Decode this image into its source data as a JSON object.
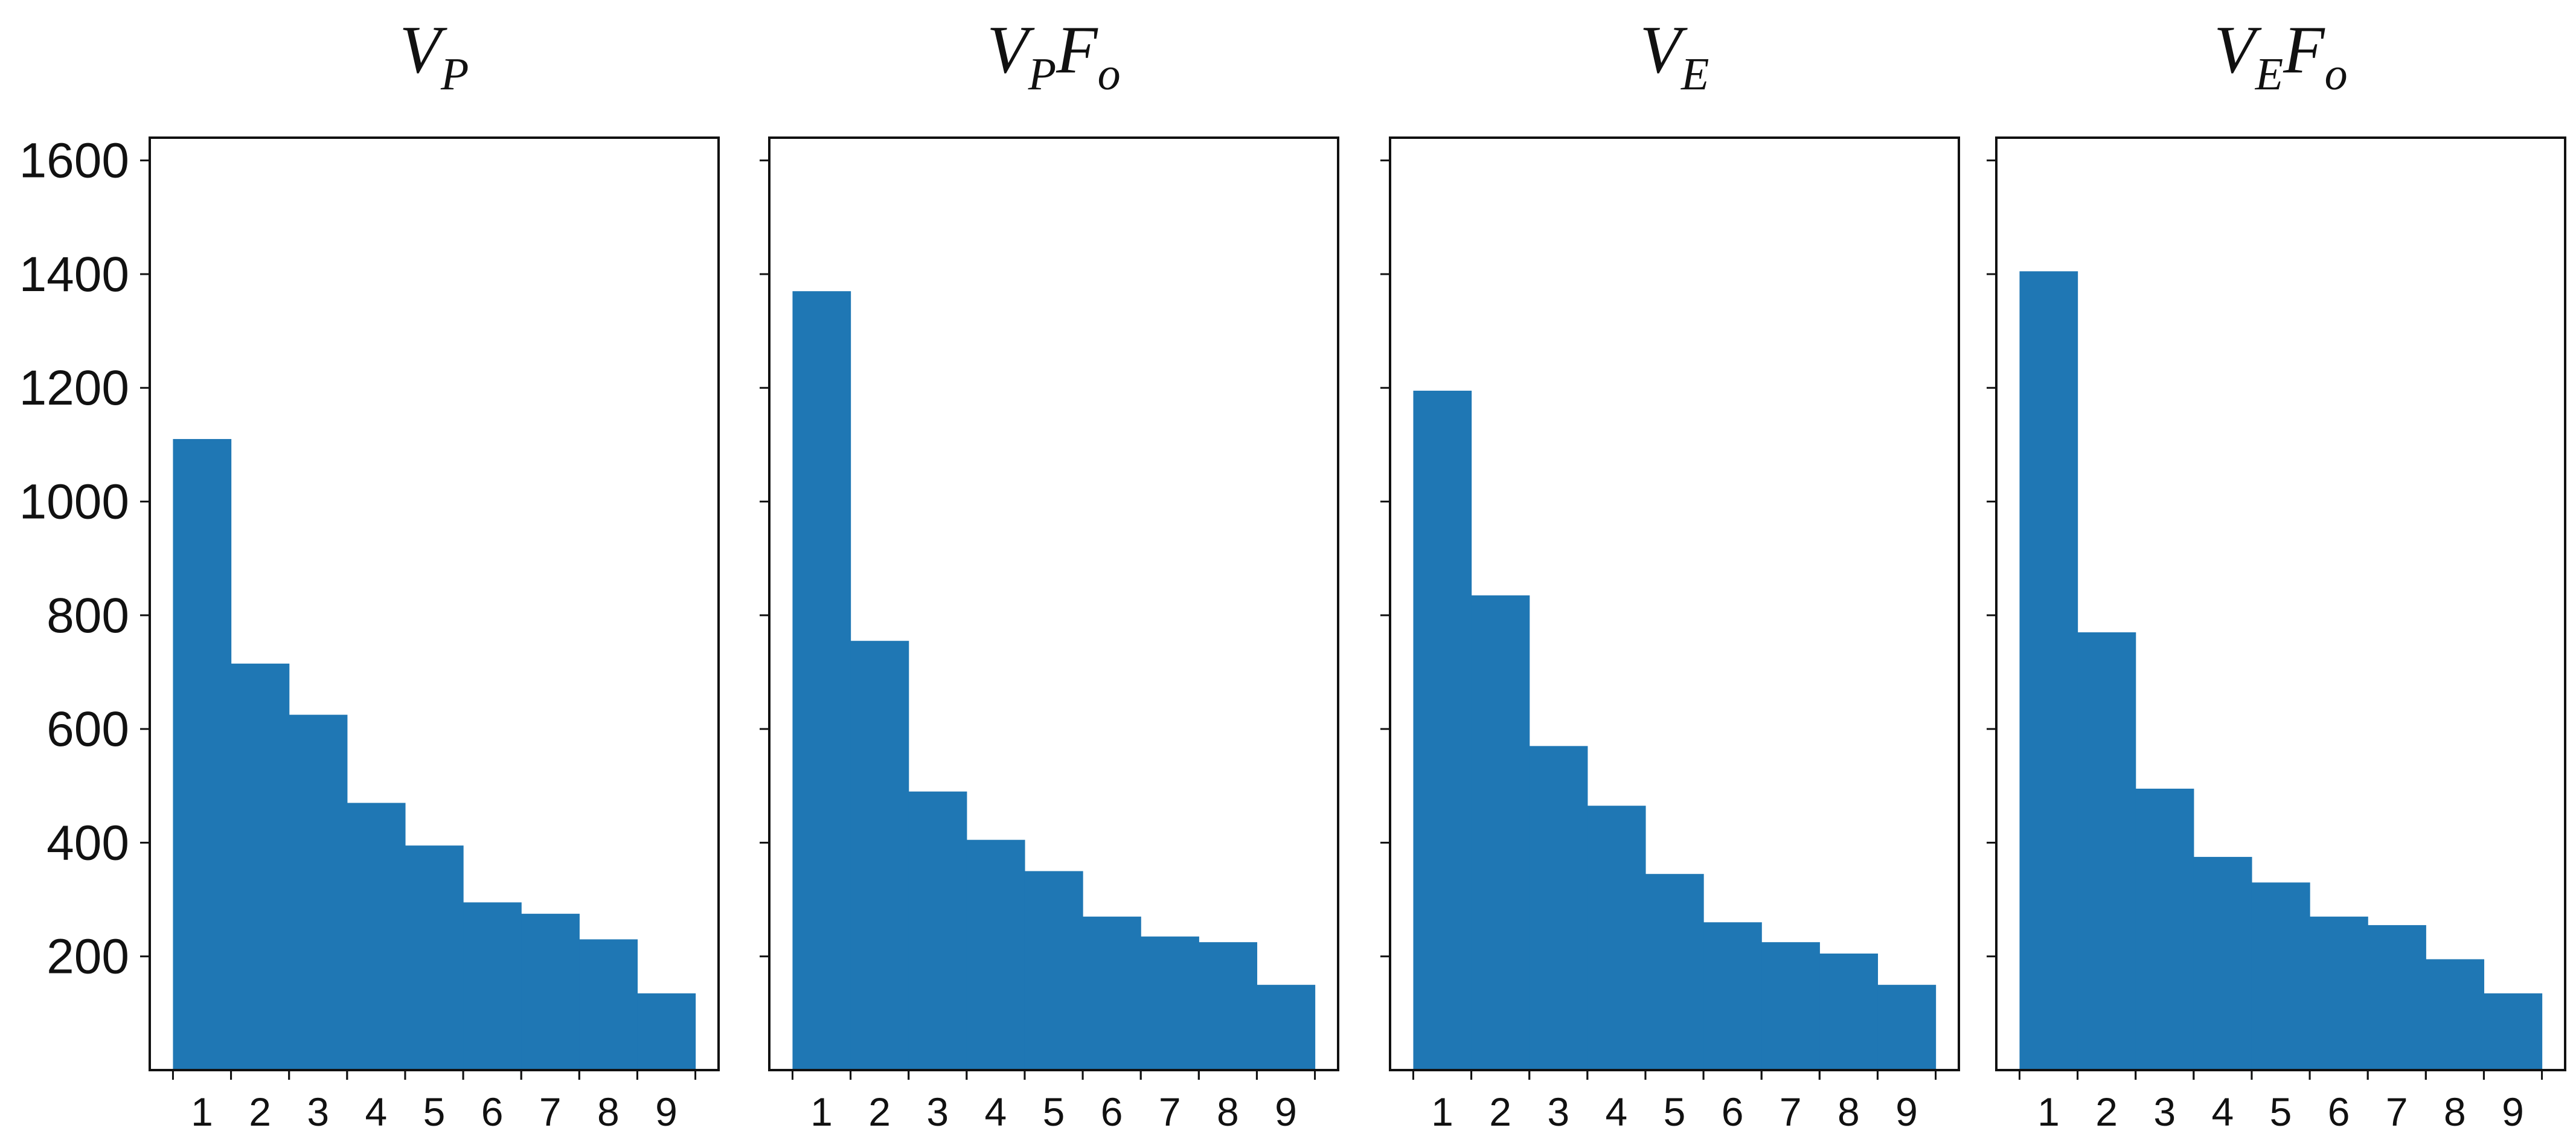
{
  "chart_data": [
    {
      "type": "bar",
      "title": {
        "main": "V",
        "sub": "P",
        "main2": "",
        "sub2": ""
      },
      "categories": [
        "1",
        "2",
        "3",
        "4",
        "5",
        "6",
        "7",
        "8",
        "9"
      ],
      "values": [
        1110,
        715,
        625,
        470,
        395,
        295,
        275,
        230,
        135
      ],
      "ylim": [
        0,
        1640
      ],
      "yticks": [
        200,
        400,
        600,
        800,
        1000,
        1200,
        1400,
        1600
      ],
      "show_ytick_labels": true,
      "color": "#1f77b4"
    },
    {
      "type": "bar",
      "title": {
        "main": "V",
        "sub": "P",
        "main2": "F",
        "sub2": "o"
      },
      "categories": [
        "1",
        "2",
        "3",
        "4",
        "5",
        "6",
        "7",
        "8",
        "9"
      ],
      "values": [
        1370,
        755,
        490,
        405,
        350,
        270,
        235,
        225,
        150
      ],
      "ylim": [
        0,
        1640
      ],
      "yticks": [
        200,
        400,
        600,
        800,
        1000,
        1200,
        1400,
        1600
      ],
      "show_ytick_labels": false,
      "color": "#1f77b4"
    },
    {
      "type": "bar",
      "title": {
        "main": "V",
        "sub": "E",
        "main2": "",
        "sub2": ""
      },
      "categories": [
        "1",
        "2",
        "3",
        "4",
        "5",
        "6",
        "7",
        "8",
        "9"
      ],
      "values": [
        1195,
        835,
        570,
        465,
        345,
        260,
        225,
        205,
        150
      ],
      "ylim": [
        0,
        1640
      ],
      "yticks": [
        200,
        400,
        600,
        800,
        1000,
        1200,
        1400,
        1600
      ],
      "show_ytick_labels": false,
      "color": "#1f77b4"
    },
    {
      "type": "bar",
      "title": {
        "main": "V",
        "sub": "E",
        "main2": "F",
        "sub2": "o"
      },
      "categories": [
        "1",
        "2",
        "3",
        "4",
        "5",
        "6",
        "7",
        "8",
        "9"
      ],
      "values": [
        1405,
        770,
        495,
        375,
        330,
        270,
        255,
        195,
        135
      ],
      "ylim": [
        0,
        1640
      ],
      "yticks": [
        200,
        400,
        600,
        800,
        1000,
        1200,
        1400,
        1600
      ],
      "show_ytick_labels": false,
      "color": "#1f77b4"
    }
  ]
}
